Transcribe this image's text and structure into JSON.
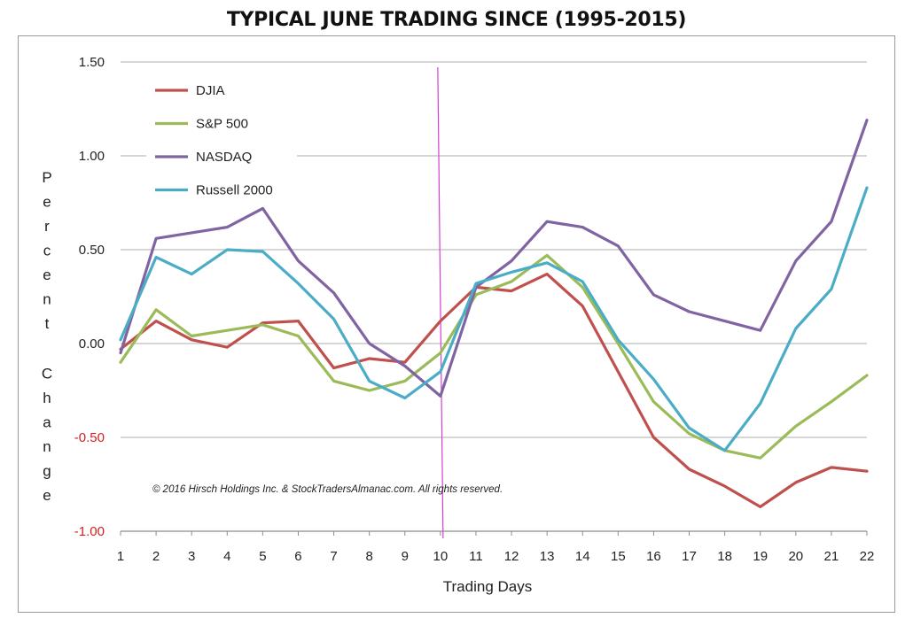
{
  "chart_data": {
    "type": "line",
    "title": "TYPICAL JUNE TRADING SINCE (1995-2015)",
    "xlabel": "Trading Days",
    "ylabel": "Percent Change",
    "x": [
      1,
      2,
      3,
      4,
      5,
      6,
      7,
      8,
      9,
      10,
      11,
      12,
      13,
      14,
      15,
      16,
      17,
      18,
      19,
      20,
      21,
      22
    ],
    "ylim": [
      -1.0,
      1.5
    ],
    "yticks": [
      "1.50",
      "1.00",
      "0.50",
      "0.00",
      "-0.50",
      "-1.00"
    ],
    "ytick_values": [
      1.5,
      1.0,
      0.5,
      0.0,
      -0.5,
      -1.0
    ],
    "grid": true,
    "marker_day": 10,
    "legend_position": "top-left",
    "series": [
      {
        "name": "DJIA",
        "color": "#c0504d",
        "values": [
          -0.03,
          0.12,
          0.02,
          -0.02,
          0.11,
          0.12,
          -0.13,
          -0.08,
          -0.1,
          0.12,
          0.3,
          0.28,
          0.37,
          0.2,
          -0.15,
          -0.5,
          -0.67,
          -0.76,
          -0.87,
          -0.74,
          -0.66,
          -0.68
        ]
      },
      {
        "name": "S&P 500",
        "color": "#9bbb59",
        "values": [
          -0.1,
          0.18,
          0.04,
          0.07,
          0.1,
          0.04,
          -0.2,
          -0.25,
          -0.2,
          -0.05,
          0.26,
          0.33,
          0.47,
          0.3,
          0.0,
          -0.31,
          -0.48,
          -0.57,
          -0.61,
          -0.44,
          -0.31,
          -0.17
        ]
      },
      {
        "name": "NASDAQ",
        "color": "#8064a2",
        "values": [
          -0.05,
          0.56,
          0.59,
          0.62,
          0.72,
          0.44,
          0.27,
          0.0,
          -0.12,
          -0.28,
          0.3,
          0.44,
          0.65,
          0.62,
          0.52,
          0.26,
          0.17,
          0.12,
          0.07,
          0.44,
          0.65,
          1.19
        ]
      },
      {
        "name": "Russell 2000",
        "color": "#4bacc6",
        "values": [
          0.02,
          0.46,
          0.37,
          0.5,
          0.49,
          0.32,
          0.13,
          -0.2,
          -0.29,
          -0.15,
          0.32,
          0.38,
          0.43,
          0.33,
          0.02,
          -0.19,
          -0.45,
          -0.57,
          -0.32,
          0.08,
          0.29,
          0.83
        ]
      }
    ],
    "annotation": "© 2016 Hirsch Holdings Inc. & StockTradersAlmanac.com. All rights reserved."
  }
}
